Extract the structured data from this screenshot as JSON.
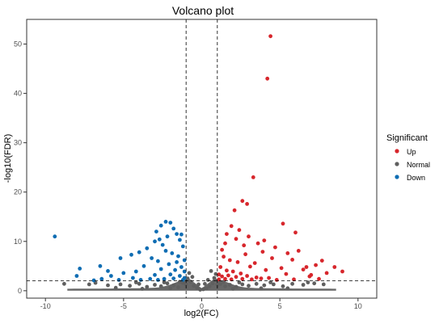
{
  "chart_data": {
    "type": "scatter",
    "title": "Volcano plot",
    "xlabel": "log2(FC)",
    "ylabel": "-log10(FDR)",
    "xlim": [
      -11.2,
      11.2
    ],
    "ylim": [
      -1.5,
      55
    ],
    "xticks": [
      -10,
      -5,
      0,
      5,
      10
    ],
    "yticks": [
      0,
      10,
      20,
      30,
      40,
      50
    ],
    "vlines": [
      -1,
      1
    ],
    "hline": 2,
    "grid": false,
    "legend": {
      "title": "Significant",
      "placement": "right",
      "entries": [
        "Up",
        "Normal",
        "Down"
      ]
    },
    "colors": {
      "Up": "#d7262c",
      "Normal": "#5f5f5f",
      "Down": "#0f6db3"
    },
    "series": [
      {
        "name": "Up",
        "points": [
          [
            4.4,
            51.6
          ],
          [
            4.2,
            43.0
          ],
          [
            3.3,
            23.0
          ],
          [
            2.6,
            18.2
          ],
          [
            2.9,
            17.6
          ],
          [
            2.1,
            16.3
          ],
          [
            5.2,
            13.6
          ],
          [
            1.9,
            13.1
          ],
          [
            2.4,
            12.3
          ],
          [
            6.0,
            11.8
          ],
          [
            3.0,
            11.0
          ],
          [
            1.6,
            11.5
          ],
          [
            4.0,
            10.2
          ],
          [
            2.2,
            10.5
          ],
          [
            3.6,
            9.6
          ],
          [
            2.7,
            9.2
          ],
          [
            4.7,
            8.8
          ],
          [
            1.5,
            9.6
          ],
          [
            6.2,
            8.1
          ],
          [
            5.5,
            7.6
          ],
          [
            3.9,
            7.9
          ],
          [
            1.3,
            8.3
          ],
          [
            2.8,
            7.4
          ],
          [
            4.5,
            6.6
          ],
          [
            5.8,
            6.3
          ],
          [
            7.7,
            6.1
          ],
          [
            7.3,
            5.2
          ],
          [
            6.7,
            4.8
          ],
          [
            9.0,
            3.9
          ],
          [
            8.0,
            3.6
          ],
          [
            5.1,
            4.6
          ],
          [
            3.4,
            5.6
          ],
          [
            1.4,
            6.9
          ],
          [
            1.8,
            6.2
          ],
          [
            2.3,
            5.8
          ],
          [
            3.1,
            4.9
          ],
          [
            4.1,
            4.2
          ],
          [
            6.5,
            4.3
          ],
          [
            7.0,
            3.2
          ],
          [
            1.2,
            4.8
          ],
          [
            1.6,
            4.1
          ],
          [
            2.0,
            3.9
          ],
          [
            2.5,
            3.5
          ],
          [
            1.1,
            3.3
          ],
          [
            1.3,
            2.9
          ],
          [
            1.7,
            3.1
          ],
          [
            2.2,
            2.8
          ],
          [
            2.9,
            3.0
          ],
          [
            3.5,
            2.7
          ],
          [
            4.3,
            2.6
          ],
          [
            5.4,
            3.4
          ],
          [
            6.9,
            2.9
          ],
          [
            8.5,
            4.8
          ],
          [
            1.1,
            2.3
          ],
          [
            1.5,
            2.4
          ],
          [
            1.9,
            2.3
          ],
          [
            2.6,
            2.4
          ],
          [
            3.2,
            2.3
          ],
          [
            3.8,
            2.5
          ],
          [
            4.8,
            2.2
          ],
          [
            5.9,
            2.3
          ],
          [
            7.5,
            2.4
          ]
        ]
      },
      {
        "name": "Down",
        "points": [
          [
            -9.4,
            11.0
          ],
          [
            -2.3,
            14.0
          ],
          [
            -2.0,
            13.8
          ],
          [
            -2.6,
            13.2
          ],
          [
            -1.8,
            12.6
          ],
          [
            -2.9,
            12.0
          ],
          [
            -1.6,
            11.5
          ],
          [
            -2.2,
            11.0
          ],
          [
            -1.4,
            10.3
          ],
          [
            -3.0,
            10.0
          ],
          [
            -2.5,
            9.3
          ],
          [
            -1.2,
            9.0
          ],
          [
            -3.5,
            8.6
          ],
          [
            -4.0,
            7.8
          ],
          [
            -4.5,
            7.3
          ],
          [
            -5.2,
            6.6
          ],
          [
            -6.5,
            5.0
          ],
          [
            -7.8,
            4.5
          ],
          [
            -6.0,
            4.0
          ],
          [
            -5.0,
            3.6
          ],
          [
            -8.0,
            3.0
          ],
          [
            -3.2,
            6.6
          ],
          [
            -2.8,
            6.0
          ],
          [
            -1.9,
            7.6
          ],
          [
            -1.5,
            7.0
          ],
          [
            -1.1,
            6.2
          ],
          [
            -2.1,
            5.4
          ],
          [
            -3.7,
            5.0
          ],
          [
            -1.3,
            4.8
          ],
          [
            -2.6,
            4.4
          ],
          [
            -1.7,
            4.2
          ],
          [
            -4.2,
            3.9
          ],
          [
            -1.1,
            3.9
          ],
          [
            -2.0,
            3.3
          ],
          [
            -3.0,
            3.2
          ],
          [
            -5.8,
            3.0
          ],
          [
            -1.4,
            3.0
          ],
          [
            -1.1,
            2.6
          ],
          [
            -1.8,
            2.5
          ],
          [
            -2.4,
            2.4
          ],
          [
            -3.3,
            2.4
          ],
          [
            -4.4,
            2.6
          ],
          [
            -6.4,
            2.4
          ],
          [
            -1.2,
            2.2
          ],
          [
            -2.8,
            2.2
          ],
          [
            -3.9,
            2.2
          ],
          [
            -5.3,
            2.2
          ],
          [
            -6.9,
            2.1
          ],
          [
            -1.6,
            5.8
          ],
          [
            -2.3,
            8.1
          ],
          [
            -1.3,
            11.4
          ],
          [
            -2.7,
            10.4
          ]
        ]
      },
      {
        "name": "Normal",
        "points": [
          [
            -8.8,
            1.4
          ],
          [
            -7.2,
            1.3
          ],
          [
            -6.0,
            1.1
          ],
          [
            -5.2,
            1.3
          ],
          [
            -4.6,
            1.0
          ],
          [
            -4.0,
            1.4
          ],
          [
            -3.5,
            0.8
          ],
          [
            -3.0,
            1.2
          ],
          [
            -2.6,
            0.9
          ],
          [
            -2.2,
            1.5
          ],
          [
            -1.8,
            1.1
          ],
          [
            -1.5,
            0.7
          ],
          [
            -1.2,
            1.6
          ],
          [
            -0.9,
            2.5
          ],
          [
            -0.7,
            1.8
          ],
          [
            -0.5,
            1.0
          ],
          [
            -0.3,
            0.6
          ],
          [
            -0.1,
            0.2
          ],
          [
            0.1,
            0.3
          ],
          [
            0.3,
            0.5
          ],
          [
            0.5,
            0.9
          ],
          [
            0.7,
            1.5
          ],
          [
            0.8,
            2.6
          ],
          [
            0.9,
            3.4
          ],
          [
            0.6,
            4.0
          ],
          [
            -0.8,
            3.6
          ],
          [
            1.2,
            1.4
          ],
          [
            1.5,
            0.9
          ],
          [
            1.8,
            1.2
          ],
          [
            2.2,
            0.8
          ],
          [
            2.6,
            1.3
          ],
          [
            3.0,
            1.0
          ],
          [
            3.5,
            1.4
          ],
          [
            4.0,
            1.1
          ],
          [
            4.6,
            1.3
          ],
          [
            5.2,
            0.9
          ],
          [
            5.8,
            1.4
          ],
          [
            6.5,
            1.2
          ],
          [
            7.2,
            1.5
          ],
          [
            7.8,
            1.3
          ],
          [
            -1.0,
            1.3
          ],
          [
            1.0,
            1.2
          ],
          [
            -2.0,
            0.5
          ],
          [
            2.0,
            0.4
          ],
          [
            -3.8,
            0.4
          ],
          [
            3.8,
            0.5
          ],
          [
            -5.5,
            0.6
          ],
          [
            5.5,
            0.5
          ],
          [
            -0.6,
            2.8
          ],
          [
            0.4,
            2.2
          ],
          [
            -0.2,
            1.3
          ],
          [
            0.2,
            1.4
          ],
          [
            -1.4,
            1.8
          ],
          [
            1.4,
            1.8
          ],
          [
            -2.4,
            1.7
          ],
          [
            2.4,
            1.7
          ],
          [
            -4.2,
            1.7
          ],
          [
            4.4,
            1.7
          ],
          [
            -6.8,
            1.6
          ],
          [
            6.8,
            1.7
          ]
        ]
      }
    ]
  }
}
